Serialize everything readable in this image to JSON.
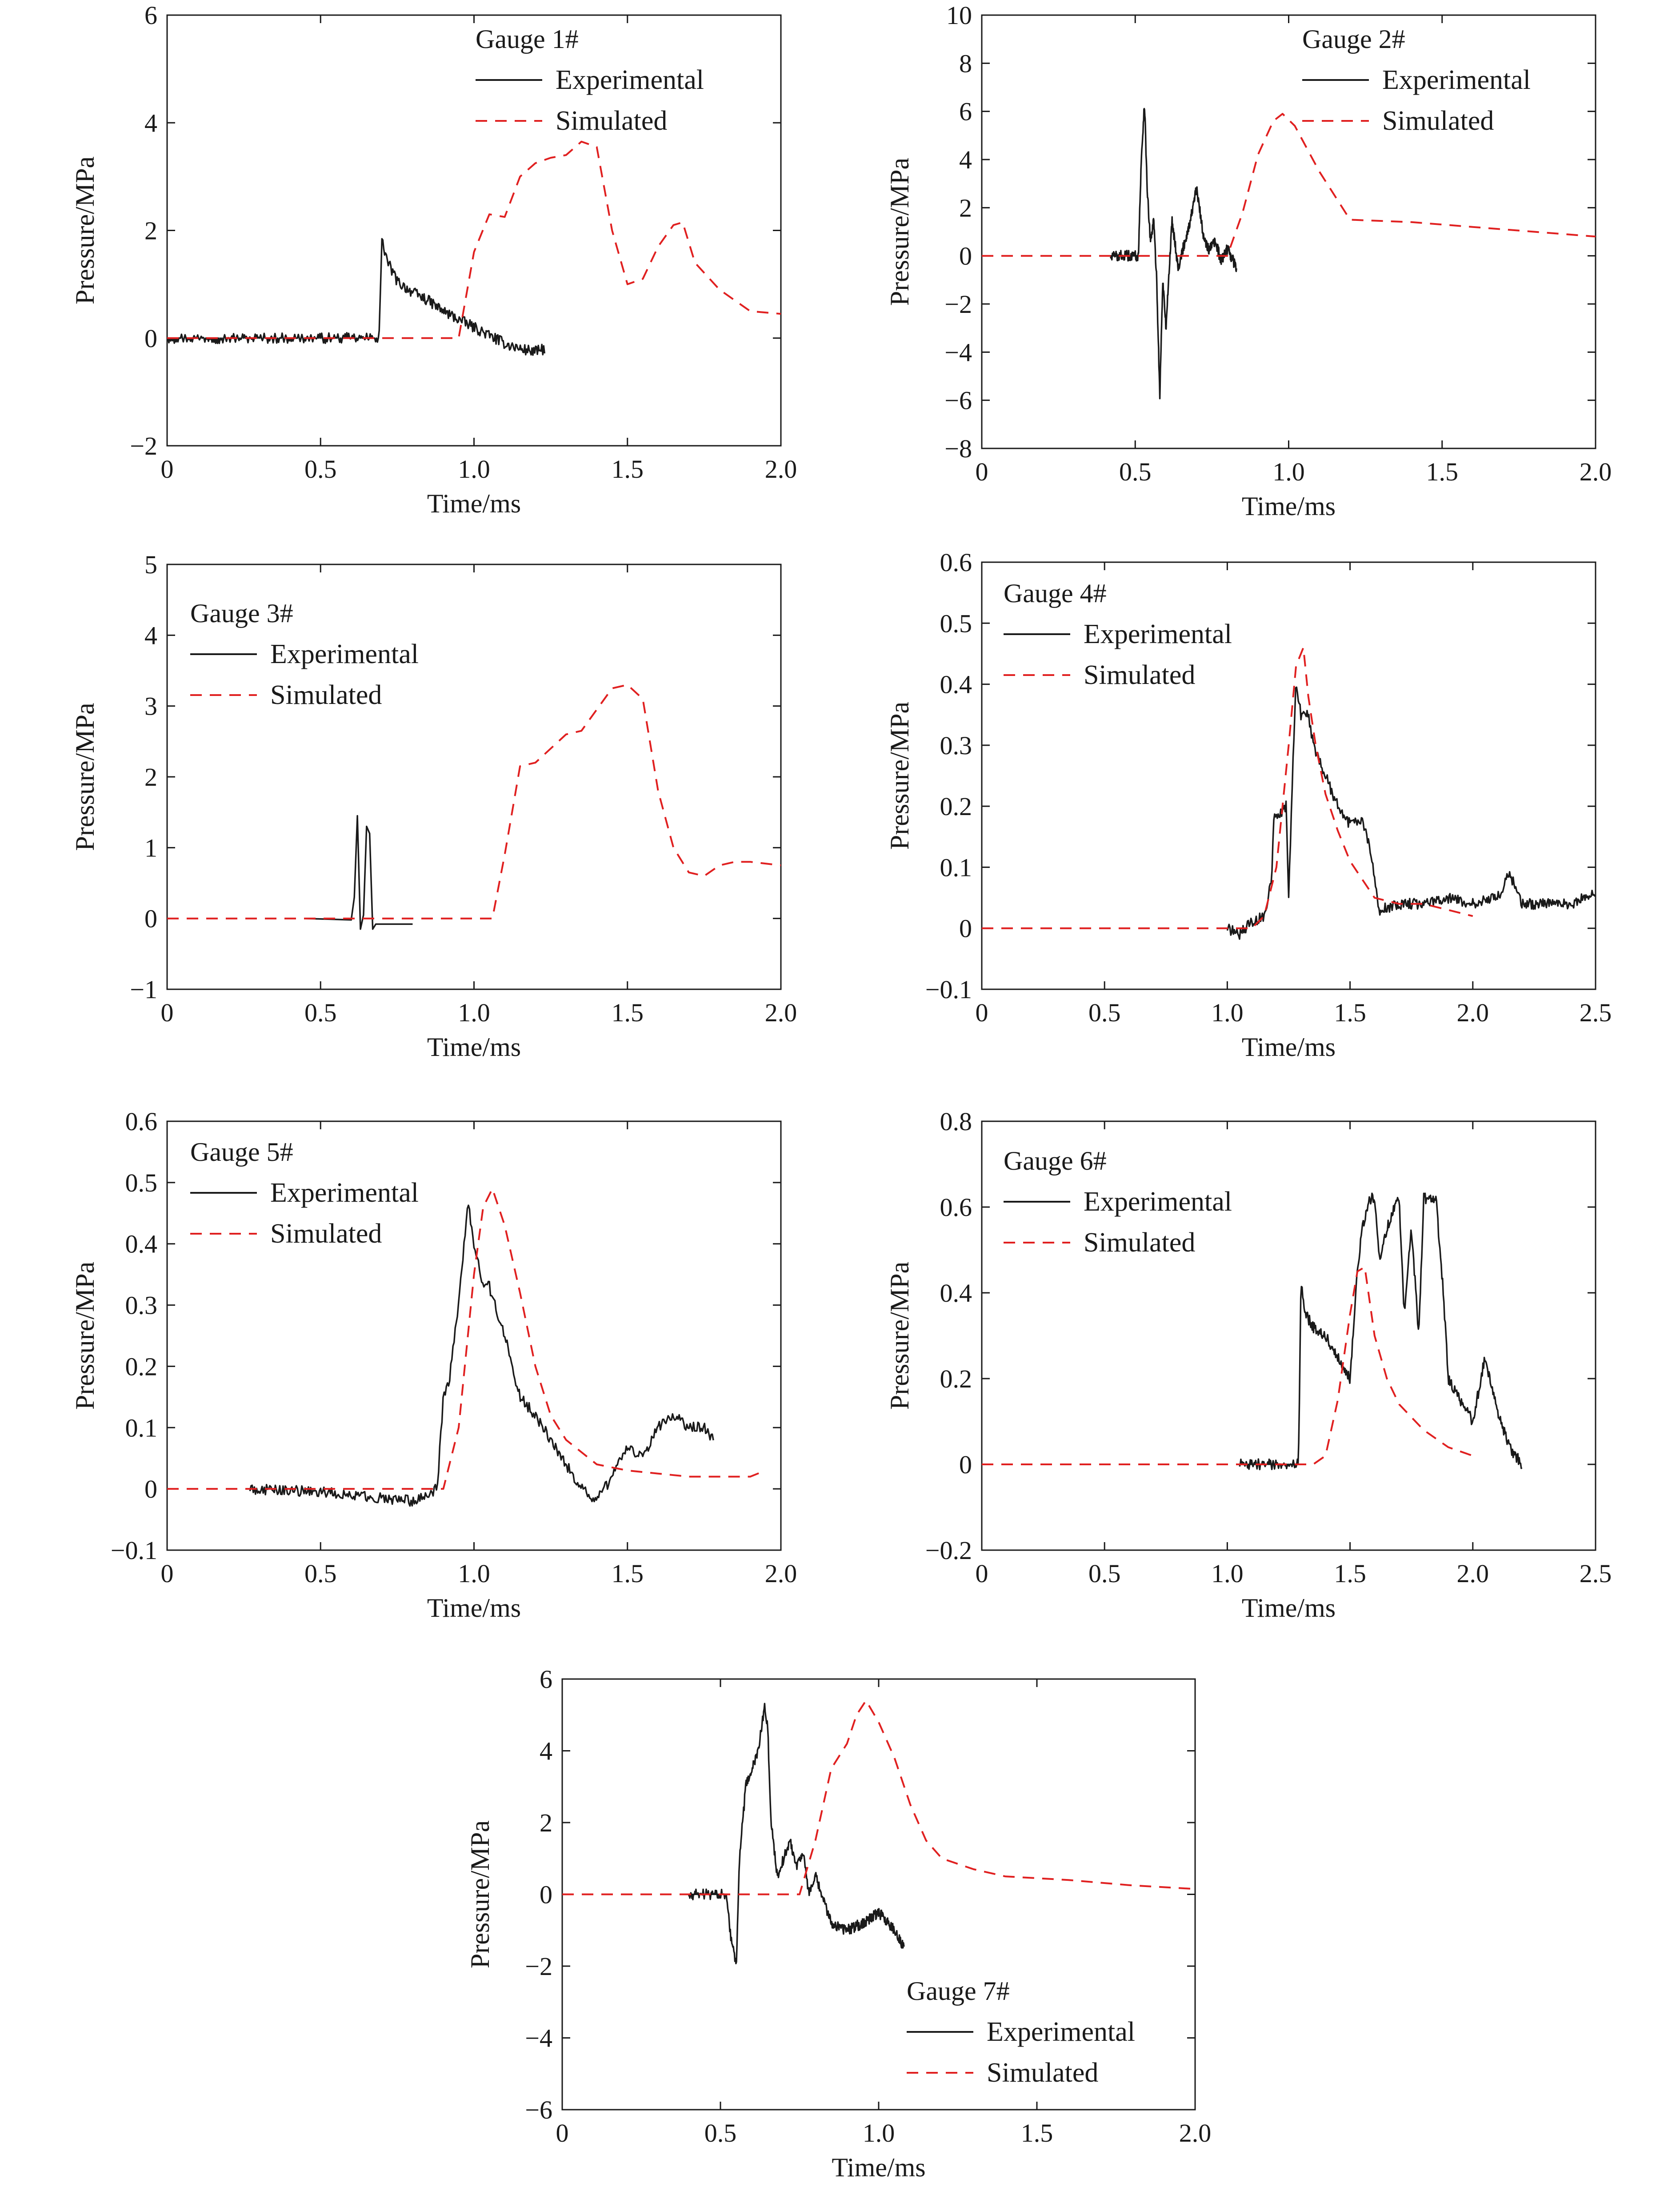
{
  "colors": {
    "experimental": "#1a1a1a",
    "simulated": "#e02020",
    "axis": "#1a1a1a"
  },
  "chart_data": [
    {
      "type": "line",
      "title": "Gauge 1#",
      "xlabel": "Time/ms",
      "ylabel": "Pressure/MPa",
      "xlim": [
        0,
        2.0
      ],
      "ylim": [
        -2,
        6
      ],
      "xticks": [
        "0",
        "0.5",
        "1.0",
        "1.5",
        "2.0"
      ],
      "yticks": [
        "−2",
        "0",
        "2",
        "4",
        "6"
      ],
      "legend": "top-center",
      "series": [
        {
          "name": "Experimental",
          "style": "solid",
          "noisy": true,
          "x": [
            0,
            0.69,
            0.7,
            0.72,
            0.75,
            0.8,
            0.85,
            0.9,
            0.95,
            1.0,
            1.05,
            1.1,
            1.15,
            1.2,
            1.23
          ],
          "y": [
            0,
            0,
            1.8,
            1.4,
            1.05,
            0.85,
            0.7,
            0.5,
            0.35,
            0.2,
            0.05,
            -0.1,
            -0.2,
            -0.25,
            -0.2
          ]
        },
        {
          "name": "Simulated",
          "style": "dashed",
          "noisy": false,
          "x": [
            0,
            0.95,
            1.0,
            1.05,
            1.1,
            1.15,
            1.2,
            1.25,
            1.3,
            1.35,
            1.4,
            1.45,
            1.5,
            1.55,
            1.6,
            1.65,
            1.68,
            1.72,
            1.8,
            1.9,
            2.0
          ],
          "y": [
            0,
            0,
            1.6,
            2.3,
            2.25,
            3.0,
            3.25,
            3.35,
            3.4,
            3.65,
            3.55,
            2.0,
            1.0,
            1.1,
            1.7,
            2.1,
            2.15,
            1.4,
            0.9,
            0.5,
            0.45
          ]
        }
      ]
    },
    {
      "type": "line",
      "title": "Gauge 2#",
      "xlabel": "Time/ms",
      "ylabel": "Pressure/MPa",
      "xlim": [
        0,
        2.0
      ],
      "ylim": [
        -8,
        10
      ],
      "xticks": [
        "0",
        "0.5",
        "1.0",
        "1.5",
        "2.0"
      ],
      "yticks": [
        "−8",
        "−6",
        "−4",
        "−2",
        "0",
        "2",
        "4",
        "6",
        "8",
        "10"
      ],
      "legend": "top-right",
      "series": [
        {
          "name": "Experimental",
          "style": "solid",
          "noisy": true,
          "x": [
            0.42,
            0.51,
            0.52,
            0.53,
            0.54,
            0.55,
            0.56,
            0.57,
            0.58,
            0.59,
            0.6,
            0.62,
            0.64,
            0.66,
            0.68,
            0.7,
            0.72,
            0.74,
            0.76,
            0.78,
            0.8,
            0.83
          ],
          "y": [
            0,
            0,
            4.0,
            6.4,
            2.5,
            0.5,
            1.5,
            -1.0,
            -5.8,
            -1.0,
            -3.0,
            1.5,
            -0.5,
            0.5,
            1.5,
            2.8,
            1.0,
            0.2,
            0.6,
            -0.2,
            0.3,
            -0.5
          ]
        },
        {
          "name": "Simulated",
          "style": "dashed",
          "noisy": false,
          "x": [
            0,
            0.8,
            0.85,
            0.9,
            0.95,
            0.98,
            1.02,
            1.1,
            1.2,
            1.4,
            1.6,
            1.8,
            2.0
          ],
          "y": [
            0,
            0,
            1.8,
            4.2,
            5.6,
            5.9,
            5.4,
            3.5,
            1.5,
            1.4,
            1.2,
            1.0,
            0.8
          ]
        }
      ]
    },
    {
      "type": "line",
      "title": "Gauge 3#",
      "xlabel": "Time/ms",
      "ylabel": "Pressure/MPa",
      "xlim": [
        0,
        2.0
      ],
      "ylim": [
        -1,
        5
      ],
      "xticks": [
        "0",
        "0.5",
        "1.0",
        "1.5",
        "2.0"
      ],
      "yticks": [
        "−1",
        "0",
        "1",
        "2",
        "3",
        "4",
        "5"
      ],
      "legend": "top-left",
      "series": [
        {
          "name": "Experimental",
          "style": "solid",
          "noisy": false,
          "x": [
            0.45,
            0.6,
            0.61,
            0.62,
            0.63,
            0.64,
            0.65,
            0.66,
            0.67,
            0.68,
            0.7,
            0.8
          ],
          "y": [
            0,
            -0.02,
            0.3,
            1.45,
            -0.15,
            0.05,
            1.3,
            1.2,
            -0.15,
            -0.08,
            -0.08,
            -0.08
          ]
        },
        {
          "name": "Simulated",
          "style": "dashed",
          "noisy": false,
          "x": [
            0,
            1.06,
            1.1,
            1.15,
            1.2,
            1.25,
            1.3,
            1.35,
            1.4,
            1.45,
            1.5,
            1.55,
            1.6,
            1.65,
            1.7,
            1.75,
            1.8,
            1.85,
            1.9,
            2.0
          ],
          "y": [
            0,
            0,
            0.9,
            2.15,
            2.2,
            2.4,
            2.6,
            2.65,
            2.95,
            3.25,
            3.3,
            3.1,
            1.8,
            1.0,
            0.65,
            0.6,
            0.75,
            0.8,
            0.8,
            0.75
          ]
        }
      ]
    },
    {
      "type": "line",
      "title": "Gauge 4#",
      "xlabel": "Time/ms",
      "ylabel": "Pressure/MPa",
      "xlim": [
        0,
        2.5
      ],
      "ylim": [
        -0.1,
        0.6
      ],
      "xticks": [
        "0",
        "0.5",
        "1.0",
        "1.5",
        "2.0",
        "2.5"
      ],
      "yticks": [
        "−0.1",
        "0",
        "0.1",
        "0.2",
        "0.3",
        "0.4",
        "0.5",
        "0.6"
      ],
      "legend": "top-left",
      "series": [
        {
          "name": "Experimental",
          "style": "solid",
          "noisy": true,
          "x": [
            1.0,
            1.05,
            1.1,
            1.15,
            1.18,
            1.19,
            1.22,
            1.24,
            1.25,
            1.27,
            1.28,
            1.3,
            1.33,
            1.35,
            1.4,
            1.45,
            1.5,
            1.55,
            1.58,
            1.62,
            1.7,
            1.8,
            1.9,
            2.0,
            2.1,
            2.15,
            2.2,
            2.3,
            2.4,
            2.5
          ],
          "y": [
            0,
            -0.01,
            0.01,
            0.02,
            0.08,
            0.18,
            0.19,
            0.2,
            0.05,
            0.3,
            0.4,
            0.35,
            0.35,
            0.3,
            0.25,
            0.2,
            0.17,
            0.18,
            0.13,
            0.03,
            0.04,
            0.04,
            0.05,
            0.04,
            0.05,
            0.09,
            0.04,
            0.04,
            0.04,
            0.06
          ]
        },
        {
          "name": "Simulated",
          "style": "dashed",
          "noisy": false,
          "x": [
            0,
            1.1,
            1.15,
            1.2,
            1.25,
            1.28,
            1.31,
            1.33,
            1.36,
            1.4,
            1.45,
            1.5,
            1.55,
            1.6,
            1.7,
            1.8,
            1.9,
            2.0
          ],
          "y": [
            0,
            0,
            0.02,
            0.1,
            0.3,
            0.43,
            0.46,
            0.38,
            0.3,
            0.22,
            0.16,
            0.11,
            0.08,
            0.05,
            0.04,
            0.04,
            0.03,
            0.02
          ]
        }
      ]
    },
    {
      "type": "line",
      "title": "Gauge 5#",
      "xlabel": "Time/ms",
      "ylabel": "Pressure/MPa",
      "xlim": [
        0,
        2.0
      ],
      "ylim": [
        -0.1,
        0.6
      ],
      "xticks": [
        "0",
        "0.5",
        "1.0",
        "1.5",
        "2.0"
      ],
      "yticks": [
        "−0.1",
        "0",
        "0.1",
        "0.2",
        "0.3",
        "0.4",
        "0.5",
        "0.6"
      ],
      "legend": "top-left",
      "series": [
        {
          "name": "Experimental",
          "style": "solid",
          "noisy": true,
          "x": [
            0.27,
            0.5,
            0.6,
            0.7,
            0.8,
            0.88,
            0.9,
            0.92,
            0.95,
            0.98,
            1.0,
            1.03,
            1.05,
            1.1,
            1.15,
            1.2,
            1.25,
            1.3,
            1.35,
            1.4,
            1.45,
            1.5,
            1.55,
            1.6,
            1.65,
            1.7,
            1.75,
            1.78
          ],
          "y": [
            0,
            -0.005,
            -0.01,
            -0.015,
            -0.02,
            0,
            0.15,
            0.18,
            0.3,
            0.47,
            0.4,
            0.33,
            0.33,
            0.25,
            0.15,
            0.12,
            0.08,
            0.04,
            0.0,
            -0.02,
            0.02,
            0.07,
            0.05,
            0.1,
            0.12,
            0.1,
            0.1,
            0.08
          ]
        },
        {
          "name": "Simulated",
          "style": "dashed",
          "noisy": false,
          "x": [
            0,
            0.9,
            0.95,
            1.0,
            1.03,
            1.06,
            1.1,
            1.15,
            1.2,
            1.25,
            1.3,
            1.4,
            1.5,
            1.6,
            1.7,
            1.8,
            1.9,
            1.95
          ],
          "y": [
            0,
            0,
            0.1,
            0.35,
            0.46,
            0.49,
            0.43,
            0.32,
            0.2,
            0.12,
            0.08,
            0.04,
            0.03,
            0.025,
            0.02,
            0.02,
            0.02,
            0.03
          ]
        }
      ]
    },
    {
      "type": "line",
      "title": "Gauge 6#",
      "xlabel": "Time/ms",
      "ylabel": "Pressure/MPa",
      "xlim": [
        0,
        2.5
      ],
      "ylim": [
        -0.2,
        0.8
      ],
      "xticks": [
        "0",
        "0.5",
        "1.0",
        "1.5",
        "2.0",
        "2.5"
      ],
      "yticks": [
        "−0.2",
        "0",
        "0.2",
        "0.4",
        "0.6",
        "0.8"
      ],
      "legend": "top-left",
      "series": [
        {
          "name": "Experimental",
          "style": "solid",
          "noisy": true,
          "x": [
            1.05,
            1.15,
            1.25,
            1.29,
            1.3,
            1.32,
            1.35,
            1.4,
            1.45,
            1.5,
            1.53,
            1.55,
            1.58,
            1.6,
            1.62,
            1.65,
            1.68,
            1.7,
            1.72,
            1.75,
            1.78,
            1.8,
            1.82,
            1.85,
            1.88,
            1.9,
            1.95,
            2.0,
            2.05,
            2.1,
            2.15,
            2.2
          ],
          "y": [
            0,
            0,
            0,
            0,
            0.42,
            0.35,
            0.32,
            0.3,
            0.25,
            0.2,
            0.45,
            0.55,
            0.62,
            0.62,
            0.48,
            0.55,
            0.6,
            0.62,
            0.35,
            0.55,
            0.3,
            0.62,
            0.62,
            0.62,
            0.4,
            0.2,
            0.15,
            0.1,
            0.25,
            0.12,
            0.04,
            0.0
          ]
        },
        {
          "name": "Simulated",
          "style": "dashed",
          "noisy": false,
          "x": [
            0,
            1.35,
            1.4,
            1.45,
            1.5,
            1.53,
            1.56,
            1.6,
            1.65,
            1.7,
            1.8,
            1.9,
            2.0
          ],
          "y": [
            0,
            0,
            0.02,
            0.15,
            0.35,
            0.45,
            0.46,
            0.3,
            0.2,
            0.14,
            0.08,
            0.04,
            0.02
          ]
        }
      ]
    },
    {
      "type": "line",
      "title": "Gauge 7#",
      "xlabel": "Time/ms",
      "ylabel": "Pressure/MPa",
      "xlim": [
        0,
        2.0
      ],
      "ylim": [
        -6,
        6
      ],
      "xticks": [
        "0",
        "0.5",
        "1.0",
        "1.5",
        "2.0"
      ],
      "yticks": [
        "−6",
        "−4",
        "−2",
        "0",
        "2",
        "4",
        "6"
      ],
      "legend": "bottom-center",
      "series": [
        {
          "name": "Experimental",
          "style": "solid",
          "noisy": true,
          "x": [
            0.4,
            0.52,
            0.53,
            0.54,
            0.55,
            0.56,
            0.58,
            0.6,
            0.62,
            0.64,
            0.65,
            0.66,
            0.68,
            0.7,
            0.72,
            0.74,
            0.76,
            0.78,
            0.8,
            0.85,
            0.9,
            0.95,
            1.0,
            1.05,
            1.08
          ],
          "y": [
            0,
            0,
            -1.0,
            -1.5,
            -2.0,
            1.0,
            3.0,
            3.5,
            4.0,
            5.3,
            4.5,
            2.0,
            0.5,
            1.0,
            1.5,
            0.8,
            1.2,
            0.0,
            0.5,
            -0.8,
            -1.0,
            -0.8,
            -0.5,
            -1.0,
            -1.5
          ]
        },
        {
          "name": "Simulated",
          "style": "dashed",
          "noisy": false,
          "x": [
            0,
            0.75,
            0.8,
            0.85,
            0.9,
            0.93,
            0.96,
            1.0,
            1.05,
            1.1,
            1.15,
            1.2,
            1.3,
            1.4,
            1.6,
            1.8,
            2.0
          ],
          "y": [
            0,
            0,
            1.5,
            3.5,
            4.2,
            5.0,
            5.4,
            4.8,
            3.8,
            2.5,
            1.5,
            1.0,
            0.7,
            0.5,
            0.4,
            0.25,
            0.15
          ]
        }
      ]
    }
  ]
}
